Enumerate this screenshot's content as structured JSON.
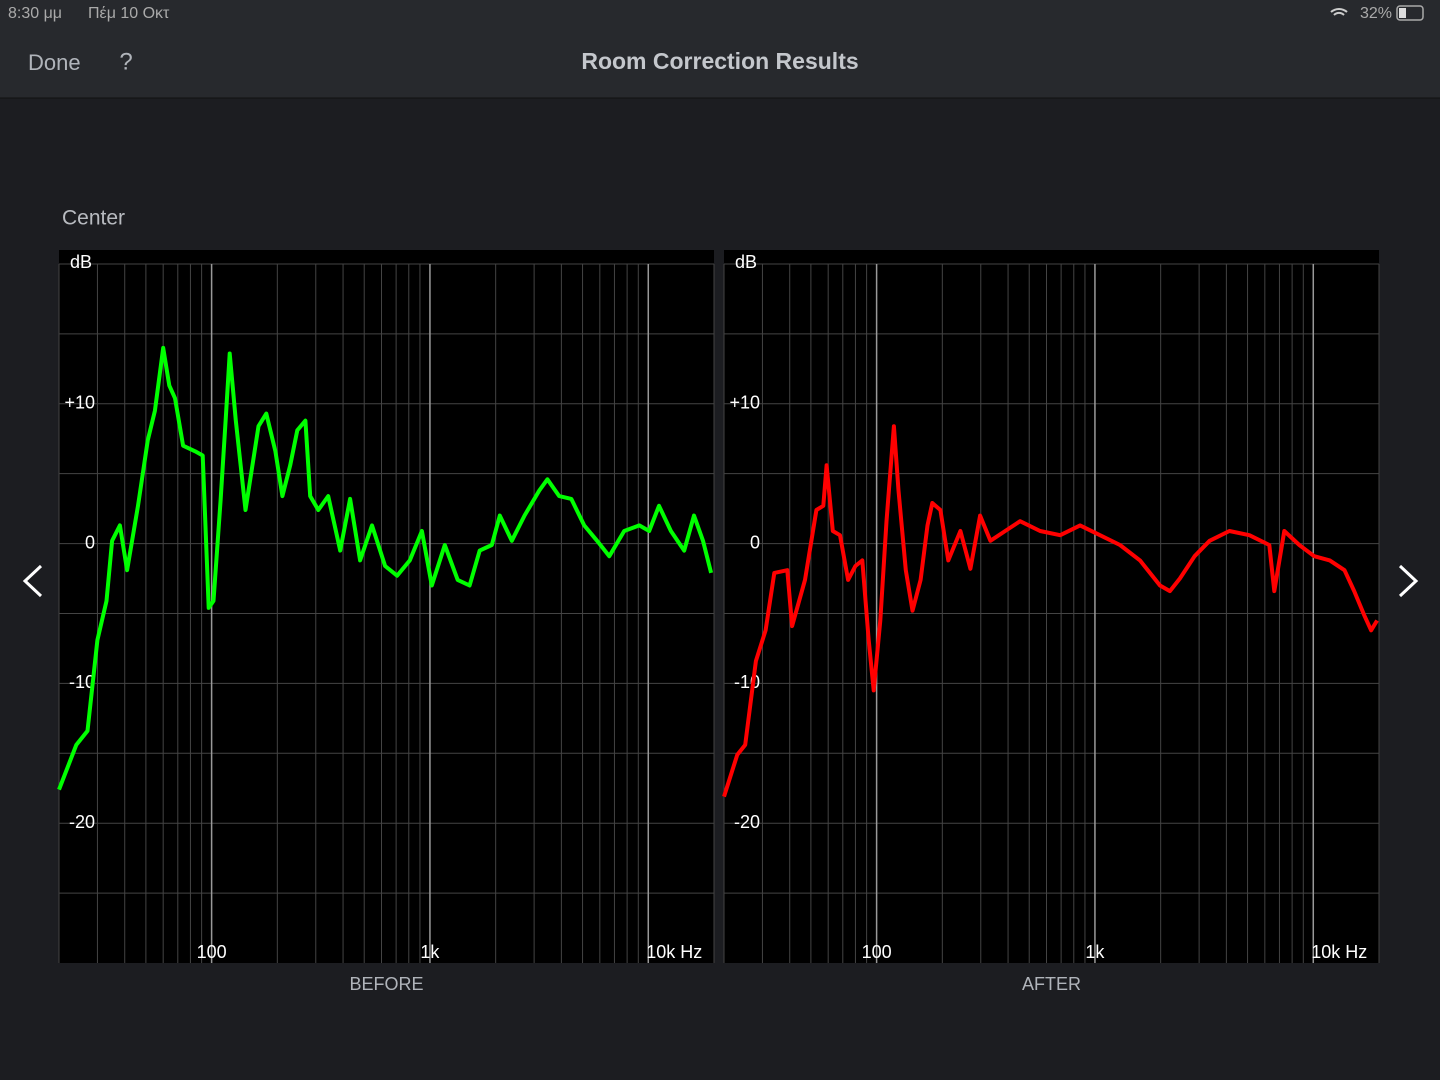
{
  "status_bar": {
    "time": "8:30 μμ",
    "date": "Πέμ 10 Οκτ",
    "battery": "32%"
  },
  "header": {
    "left_button": "Done",
    "help_button": "?",
    "title": "Room Correction Results"
  },
  "section_title": "Center",
  "chart_data": [
    {
      "type": "line",
      "label": "BEFORE",
      "ylabel": "dB",
      "log_x": true,
      "color": "#00ff00",
      "xlim": [
        20,
        20000
      ],
      "ylim": [
        -30,
        21
      ],
      "xticks": [
        100,
        {
          "value": 1000,
          "label": "1k"
        },
        {
          "value": 10000,
          "label": "10k Hz"
        }
      ],
      "yticks": [
        {
          "value": 10,
          "label": "+10"
        },
        0,
        -10,
        -20
      ],
      "xgrid": [
        20,
        30,
        40,
        50,
        60,
        70,
        80,
        90,
        100,
        200,
        300,
        400,
        500,
        600,
        700,
        800,
        900,
        1000,
        2000,
        3000,
        4000,
        5000,
        6000,
        7000,
        8000,
        9000,
        10000,
        20000
      ],
      "ygrid": [
        20,
        15,
        10,
        5,
        0,
        -5,
        -10,
        -15,
        -20,
        -25
      ],
      "x": [
        20,
        24,
        27,
        30,
        33,
        35,
        38,
        41,
        46,
        51,
        55,
        60,
        64,
        68,
        74,
        84,
        91,
        97,
        102,
        110,
        116,
        121,
        129,
        143,
        164,
        178,
        196,
        211,
        229,
        247,
        269,
        283,
        308,
        342,
        388,
        431,
        479,
        543,
        623,
        707,
        809,
        919,
        1020,
        1170,
        1340,
        1520,
        1690,
        1920,
        2090,
        2370,
        2710,
        3170,
        3450,
        3910,
        4440,
        5090,
        5830,
        6630,
        7760,
        9100,
        10100,
        11200,
        12700,
        14600,
        16200,
        17800,
        19400
      ],
      "values": [
        -17.6,
        -14.4,
        -13.4,
        -6.9,
        -4.1,
        0.2,
        1.3,
        -1.9,
        2.7,
        7.4,
        9.5,
        14,
        11.3,
        10.4,
        7,
        6.6,
        6.3,
        -4.6,
        -4.1,
        3.1,
        8.9,
        13.6,
        8.8,
        2.4,
        8.4,
        9.3,
        6.6,
        3.4,
        5.6,
        8.1,
        8.8,
        3.4,
        2.4,
        3.4,
        -0.5,
        3.2,
        -1.2,
        1.3,
        -1.6,
        -2.3,
        -1.2,
        0.9,
        -3,
        -0.1,
        -2.6,
        -3,
        -0.5,
        -0.1,
        2,
        0.2,
        2,
        3.8,
        4.6,
        3.4,
        3.2,
        1.3,
        0.2,
        -0.9,
        0.9,
        1.3,
        0.9,
        2.7,
        0.9,
        -0.5,
        2,
        0.2,
        -2.1
      ]
    },
    {
      "type": "line",
      "label": "AFTER",
      "ylabel": "dB",
      "log_x": true,
      "color": "#ff0000",
      "xlim": [
        20,
        20000
      ],
      "ylim": [
        -30,
        21
      ],
      "xticks": [
        100,
        {
          "value": 1000,
          "label": "1k"
        },
        {
          "value": 10000,
          "label": "10k Hz"
        }
      ],
      "yticks": [
        {
          "value": 10,
          "label": "+10"
        },
        0,
        -10,
        -20
      ],
      "xgrid": [
        20,
        30,
        40,
        50,
        60,
        70,
        80,
        90,
        100,
        200,
        300,
        400,
        500,
        600,
        700,
        800,
        900,
        1000,
        2000,
        3000,
        4000,
        5000,
        6000,
        7000,
        8000,
        9000,
        10000,
        20000
      ],
      "ygrid": [
        20,
        15,
        10,
        5,
        0,
        -5,
        -10,
        -15,
        -20,
        -25
      ],
      "x": [
        20,
        23,
        25,
        28,
        31,
        34,
        39,
        41,
        47,
        53,
        57,
        59,
        63,
        68,
        74,
        80,
        86,
        92,
        97,
        104,
        111,
        120,
        126,
        136,
        146,
        159,
        171,
        180,
        196,
        213,
        242,
        269,
        298,
        332,
        388,
        454,
        561,
        693,
        855,
        1055,
        1302,
        1608,
        1985,
        2205,
        2450,
        2860,
        3350,
        4130,
        5100,
        6290,
        6630,
        7370,
        8630,
        10100,
        11900,
        13900,
        15400,
        17100,
        18400,
        19600
      ],
      "values": [
        -18.1,
        -15.1,
        -14.4,
        -8.4,
        -6.2,
        -2.1,
        -1.9,
        -5.9,
        -2.6,
        2.4,
        2.7,
        5.6,
        0.9,
        0.6,
        -2.6,
        -1.6,
        -1.2,
        -6.9,
        -10.5,
        -5.5,
        1.6,
        8.4,
        3.8,
        -1.9,
        -4.8,
        -2.6,
        1.3,
        2.9,
        2.4,
        -1.2,
        0.9,
        -1.8,
        2,
        0.2,
        0.9,
        1.6,
        0.9,
        0.6,
        1.3,
        0.6,
        -0.1,
        -1.2,
        -3,
        -3.4,
        -2.5,
        -0.9,
        0.2,
        0.9,
        0.6,
        -0.1,
        -3.4,
        0.9,
        -0.1,
        -0.9,
        -1.2,
        -1.9,
        -3.4,
        -5.1,
        -6.2,
        -5.5
      ]
    }
  ]
}
